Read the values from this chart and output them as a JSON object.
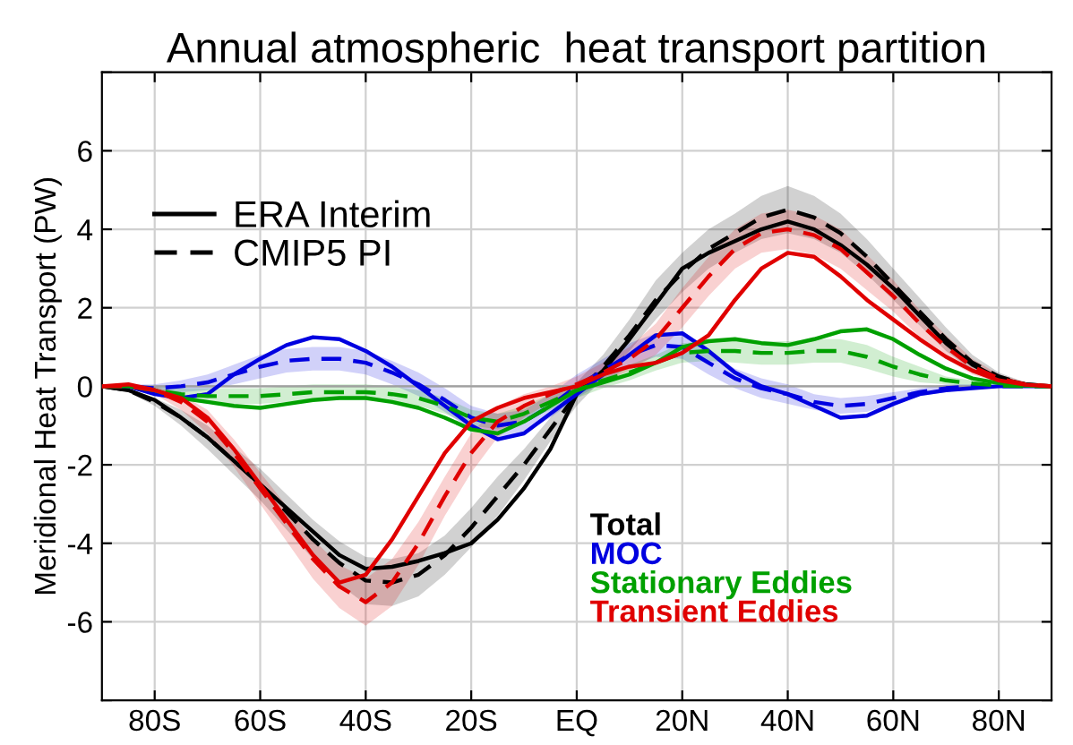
{
  "chart_data": {
    "type": "line",
    "title": "Annual atmospheric  heat transport partition",
    "ylabel": "Meridional Heat Transport (PW)",
    "annotations": [
      "ERA Interim",
      "CMIP5 PI"
    ],
    "x": [
      -90,
      -85,
      -80,
      -75,
      -70,
      -65,
      -60,
      -55,
      -50,
      -45,
      -40,
      -35,
      -30,
      -25,
      -20,
      -15,
      -10,
      -5,
      0,
      5,
      10,
      15,
      20,
      25,
      30,
      35,
      40,
      45,
      50,
      55,
      60,
      65,
      70,
      75,
      80,
      85,
      90
    ],
    "xlim": [
      -90,
      90
    ],
    "xticks": [
      {
        "value": -80,
        "label": "80S"
      },
      {
        "value": -60,
        "label": "60S"
      },
      {
        "value": -40,
        "label": "40S"
      },
      {
        "value": -20,
        "label": "20S"
      },
      {
        "value": 0,
        "label": "EQ"
      },
      {
        "value": 20,
        "label": "20N"
      },
      {
        "value": 40,
        "label": "40N"
      },
      {
        "value": 60,
        "label": "60N"
      },
      {
        "value": 80,
        "label": "80N"
      }
    ],
    "ylim": [
      -8,
      8
    ],
    "yticks": [
      {
        "value": -8,
        "label": null
      },
      -6,
      -4,
      -2,
      0,
      2,
      4,
      6,
      {
        "value": 8,
        "label": null
      }
    ],
    "grid": true,
    "legend": "bottom right",
    "series": [
      {
        "name": "Total",
        "color": "#000000",
        "line_style": "solid",
        "values": [
          0,
          -0.1,
          -0.35,
          -0.8,
          -1.3,
          -1.9,
          -2.5,
          -3.1,
          -3.7,
          -4.3,
          -4.65,
          -4.6,
          -4.45,
          -4.25,
          -4.0,
          -3.4,
          -2.6,
          -1.6,
          -0.2,
          0.4,
          1.2,
          2.1,
          3.0,
          3.4,
          3.7,
          4.0,
          4.2,
          4.0,
          3.6,
          3.1,
          2.5,
          1.8,
          1.1,
          0.55,
          0.2,
          0.05,
          0
        ]
      },
      {
        "color": "#000000",
        "line_style": "dashed",
        "values": [
          0,
          -0.1,
          -0.4,
          -0.8,
          -1.3,
          -1.9,
          -2.5,
          -3.2,
          -3.9,
          -4.5,
          -4.95,
          -5.0,
          -4.8,
          -4.3,
          -3.6,
          -2.8,
          -2.0,
          -1.1,
          -0.2,
          0.5,
          1.3,
          2.2,
          2.9,
          3.5,
          3.9,
          4.3,
          4.5,
          4.3,
          3.9,
          3.3,
          2.6,
          1.9,
          1.2,
          0.6,
          0.25,
          0.05,
          0
        ],
        "lower": [
          0,
          -0.15,
          -0.5,
          -1.0,
          -1.6,
          -2.25,
          -2.9,
          -3.65,
          -4.4,
          -5.05,
          -5.55,
          -5.6,
          -5.35,
          -4.8,
          -4.1,
          -3.3,
          -2.4,
          -1.4,
          -0.5,
          0.2,
          0.9,
          1.7,
          2.4,
          3.0,
          3.4,
          3.75,
          3.9,
          3.75,
          3.4,
          2.85,
          2.2,
          1.55,
          0.9,
          0.4,
          0.15,
          0,
          0
        ],
        "upper": [
          0,
          -0.05,
          -0.3,
          -0.6,
          -1.0,
          -1.55,
          -2.1,
          -2.75,
          -3.4,
          -3.95,
          -4.35,
          -4.4,
          -4.25,
          -3.8,
          -3.1,
          -2.3,
          -1.6,
          -0.8,
          0.1,
          0.8,
          1.7,
          2.7,
          3.4,
          4.0,
          4.4,
          4.85,
          5.1,
          4.85,
          4.4,
          3.75,
          3.0,
          2.25,
          1.5,
          0.8,
          0.35,
          0.1,
          0
        ]
      },
      {
        "name": "MOC",
        "color": "#0000e0",
        "line_style": "solid",
        "values": [
          0,
          0,
          -0.2,
          -0.3,
          -0.2,
          0.3,
          0.7,
          1.05,
          1.25,
          1.2,
          0.9,
          0.5,
          0.0,
          -0.5,
          -1.0,
          -1.35,
          -1.2,
          -0.7,
          -0.2,
          0.3,
          0.8,
          1.3,
          1.35,
          0.9,
          0.35,
          0.0,
          -0.2,
          -0.5,
          -0.8,
          -0.75,
          -0.45,
          -0.2,
          -0.1,
          -0.05,
          0,
          0,
          0
        ]
      },
      {
        "color": "#0000e0",
        "line_style": "dashed",
        "values": [
          0,
          0,
          -0.05,
          0,
          0.1,
          0.3,
          0.5,
          0.65,
          0.7,
          0.7,
          0.6,
          0.35,
          0.05,
          -0.35,
          -0.8,
          -1.0,
          -0.9,
          -0.5,
          0,
          0.4,
          0.8,
          1.05,
          1.0,
          0.6,
          0.2,
          -0.05,
          -0.2,
          -0.4,
          -0.5,
          -0.45,
          -0.3,
          -0.15,
          -0.05,
          0,
          0,
          0,
          0
        ],
        "lower": [
          0,
          -0.05,
          -0.15,
          -0.15,
          -0.1,
          0.05,
          0.2,
          0.35,
          0.4,
          0.4,
          0.3,
          0.05,
          -0.25,
          -0.65,
          -1.1,
          -1.3,
          -1.2,
          -0.8,
          -0.3,
          0.1,
          0.5,
          0.75,
          0.7,
          0.3,
          -0.05,
          -0.3,
          -0.45,
          -0.6,
          -0.7,
          -0.65,
          -0.45,
          -0.25,
          -0.15,
          -0.05,
          0,
          0,
          0
        ],
        "upper": [
          0,
          0.05,
          0.05,
          0.15,
          0.3,
          0.55,
          0.8,
          0.95,
          1.0,
          1.0,
          0.9,
          0.65,
          0.35,
          -0.05,
          -0.5,
          -0.7,
          -0.6,
          -0.2,
          0.3,
          0.7,
          1.1,
          1.35,
          1.3,
          0.9,
          0.45,
          0.2,
          0.05,
          -0.2,
          -0.3,
          -0.25,
          -0.15,
          -0.05,
          0.05,
          0.05,
          0,
          0,
          0
        ]
      },
      {
        "name": "Stationary Eddies",
        "color": "#00a000",
        "line_style": "solid",
        "values": [
          0,
          0,
          -0.1,
          -0.3,
          -0.4,
          -0.5,
          -0.55,
          -0.45,
          -0.35,
          -0.3,
          -0.3,
          -0.4,
          -0.55,
          -0.8,
          -1.1,
          -1.2,
          -0.9,
          -0.5,
          -0.1,
          0.1,
          0.3,
          0.6,
          1.0,
          1.15,
          1.2,
          1.1,
          1.05,
          1.2,
          1.4,
          1.45,
          1.2,
          0.8,
          0.45,
          0.2,
          0.08,
          0.02,
          0
        ]
      },
      {
        "color": "#00a000",
        "line_style": "dashed",
        "values": [
          0,
          0,
          -0.1,
          -0.2,
          -0.25,
          -0.25,
          -0.25,
          -0.2,
          -0.15,
          -0.15,
          -0.15,
          -0.2,
          -0.3,
          -0.5,
          -0.8,
          -0.9,
          -0.7,
          -0.4,
          -0.1,
          0.15,
          0.35,
          0.6,
          0.85,
          0.9,
          0.9,
          0.85,
          0.85,
          0.9,
          0.9,
          0.75,
          0.5,
          0.3,
          0.15,
          0.07,
          0.02,
          0,
          0
        ],
        "lower": [
          0,
          -0.05,
          -0.2,
          -0.35,
          -0.45,
          -0.45,
          -0.45,
          -0.4,
          -0.35,
          -0.35,
          -0.35,
          -0.4,
          -0.5,
          -0.7,
          -1.0,
          -1.1,
          -0.9,
          -0.6,
          -0.3,
          -0.05,
          0.15,
          0.4,
          0.6,
          0.65,
          0.6,
          0.55,
          0.55,
          0.6,
          0.6,
          0.45,
          0.25,
          0.1,
          0.05,
          0,
          0,
          0,
          0
        ],
        "upper": [
          0,
          0.05,
          0,
          -0.05,
          -0.05,
          -0.05,
          -0.05,
          0,
          0.05,
          0.05,
          0.05,
          0,
          -0.1,
          -0.3,
          -0.6,
          -0.7,
          -0.5,
          -0.2,
          0.1,
          0.35,
          0.55,
          0.8,
          1.1,
          1.15,
          1.2,
          1.15,
          1.15,
          1.2,
          1.2,
          1.05,
          0.75,
          0.5,
          0.25,
          0.15,
          0.05,
          0,
          0
        ]
      },
      {
        "name": "Transient Eddies",
        "color": "#e00000",
        "line_style": "solid",
        "values": [
          0,
          0.05,
          -0.1,
          -0.3,
          -0.8,
          -1.6,
          -2.5,
          -3.4,
          -4.3,
          -5.0,
          -4.8,
          -3.9,
          -2.8,
          -1.7,
          -0.9,
          -0.55,
          -0.3,
          -0.15,
          0,
          0.3,
          0.5,
          0.6,
          0.85,
          1.3,
          2.2,
          3.0,
          3.4,
          3.3,
          2.8,
          2.2,
          1.7,
          1.2,
          0.75,
          0.4,
          0.15,
          0.04,
          0
        ]
      },
      {
        "color": "#e00000",
        "line_style": "dashed",
        "values": [
          0,
          0,
          -0.1,
          -0.4,
          -0.9,
          -1.7,
          -2.6,
          -3.5,
          -4.4,
          -5.1,
          -5.5,
          -5.0,
          -4.0,
          -2.8,
          -1.7,
          -0.9,
          -0.5,
          -0.2,
          0.05,
          0.35,
          0.7,
          1.2,
          2.0,
          2.8,
          3.5,
          3.9,
          4.0,
          3.85,
          3.5,
          2.9,
          2.3,
          1.6,
          1.0,
          0.5,
          0.2,
          0.05,
          0
        ],
        "lower": [
          0,
          -0.05,
          -0.2,
          -0.6,
          -1.2,
          -2.05,
          -3.0,
          -3.95,
          -4.9,
          -5.65,
          -6.1,
          -5.6,
          -4.55,
          -3.3,
          -2.2,
          -1.3,
          -0.8,
          -0.4,
          -0.15,
          0.1,
          0.4,
          0.8,
          1.5,
          2.3,
          3.0,
          3.4,
          3.5,
          3.35,
          3.0,
          2.45,
          1.9,
          1.25,
          0.7,
          0.3,
          0.1,
          0,
          0
        ],
        "upper": [
          0,
          0.05,
          0,
          -0.2,
          -0.6,
          -1.35,
          -2.2,
          -3.05,
          -3.9,
          -4.55,
          -4.9,
          -4.4,
          -3.45,
          -2.3,
          -1.2,
          -0.5,
          -0.2,
          0,
          0.25,
          0.6,
          1.0,
          1.6,
          2.5,
          3.3,
          4.0,
          4.4,
          4.5,
          4.35,
          4.0,
          3.35,
          2.7,
          1.95,
          1.3,
          0.7,
          0.3,
          0.1,
          0
        ]
      }
    ]
  }
}
